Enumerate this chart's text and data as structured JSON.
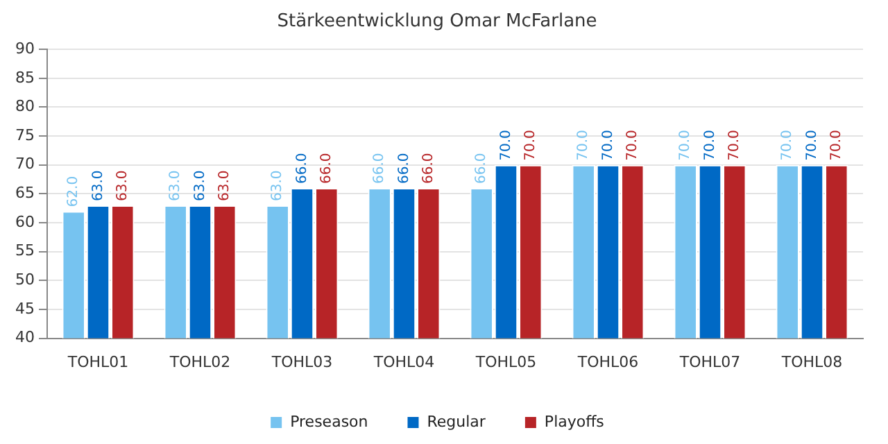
{
  "chart_data": {
    "type": "bar",
    "title": "Stärkeentwicklung Omar McFarlane",
    "categories": [
      "TOHL01",
      "TOHL02",
      "TOHL03",
      "TOHL04",
      "TOHL05",
      "TOHL06",
      "TOHL07",
      "TOHL08"
    ],
    "series": [
      {
        "name": "Preseason",
        "color": "#76c3f0",
        "values": [
          62,
          63,
          63,
          66,
          66,
          70,
          70,
          70
        ],
        "value_labels": [
          "62.0",
          "63.0",
          "63.0",
          "66.0",
          "66.0",
          "70.0",
          "70.0",
          "70.0"
        ]
      },
      {
        "name": "Regular",
        "color": "#0069c5",
        "values": [
          63,
          63,
          66,
          66,
          70,
          70,
          70,
          70
        ],
        "value_labels": [
          "63.0",
          "63.0",
          "66.0",
          "66.0",
          "70.0",
          "70.0",
          "70.0",
          "70.0"
        ]
      },
      {
        "name": "Playoffs",
        "color": "#b72427",
        "values": [
          63,
          63,
          66,
          66,
          70,
          70,
          70,
          70
        ],
        "value_labels": [
          "63.0",
          "63.0",
          "66.0",
          "66.0",
          "70.0",
          "70.0",
          "70.0",
          "70.0"
        ]
      }
    ],
    "ylim": [
      40,
      90
    ],
    "yticks": [
      40,
      45,
      50,
      55,
      60,
      65,
      70,
      75,
      80,
      85,
      90
    ],
    "grid": "y",
    "legend": "bottom"
  }
}
